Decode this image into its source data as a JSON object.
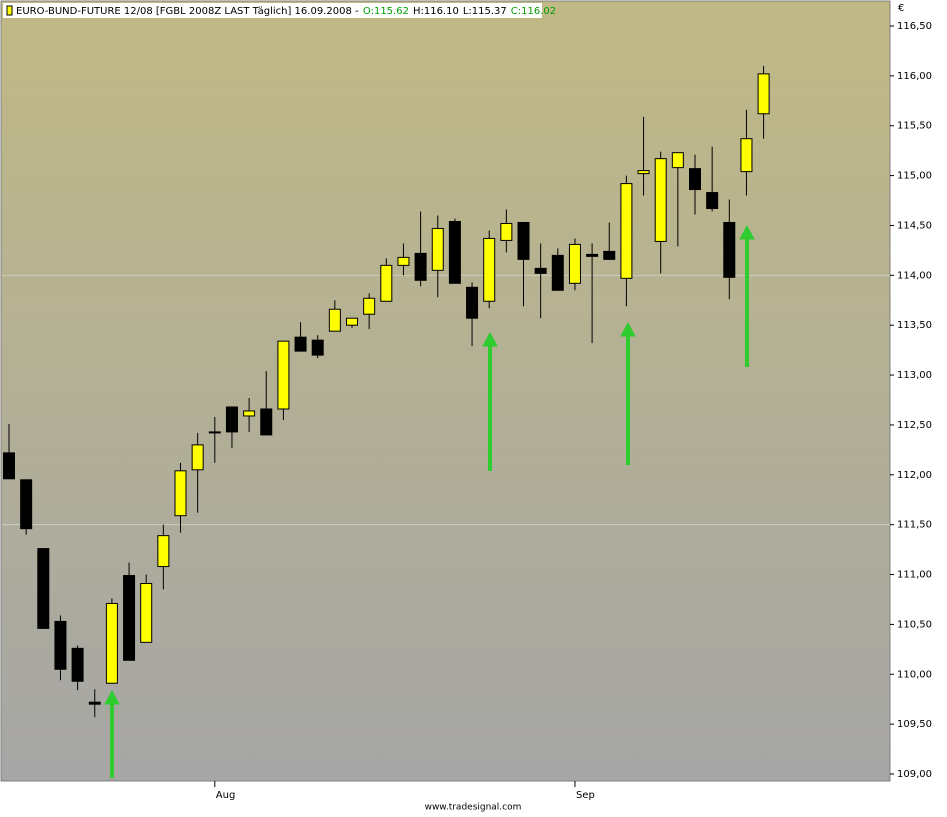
{
  "chart_data": {
    "type": "candlestick",
    "title": "EURO-BUND-FUTURE 12/08 [FGBL 2008Z LAST Täglich] 16.09.2008 -",
    "header_values": [
      {
        "text": "O:115.62",
        "color": "#00a000"
      },
      {
        "text": "H:116.10",
        "color": "#000000"
      },
      {
        "text": "L:115.37",
        "color": "#000000"
      },
      {
        "text": "C:116.02",
        "color": "#00a000"
      }
    ],
    "y_unit": "€",
    "footer": "www.tradesignal.com",
    "up_color": "#ffff00",
    "down_color": "#000000",
    "grid": true,
    "categories": [
      null,
      null,
      null,
      null,
      null,
      null,
      null,
      null,
      null,
      null,
      null,
      null,
      "Aug",
      null,
      null,
      null,
      null,
      null,
      null,
      null,
      null,
      null,
      null,
      null,
      null,
      null,
      null,
      null,
      null,
      null,
      null,
      null,
      null,
      "Sep",
      null,
      null,
      null,
      null,
      null,
      null,
      null,
      null,
      null,
      null,
      null
    ],
    "open": [
      112.22,
      111.95,
      111.26,
      110.53,
      110.26,
      109.72,
      109.91,
      110.99,
      110.32,
      111.08,
      111.59,
      112.05,
      112.43,
      112.68,
      112.59,
      112.66,
      112.66,
      113.38,
      113.35,
      113.44,
      113.5,
      113.61,
      113.74,
      114.1,
      114.22,
      114.05,
      114.54,
      113.88,
      113.74,
      114.35,
      114.53,
      114.07,
      114.2,
      113.92,
      114.21,
      114.24,
      113.97,
      115.02,
      114.34,
      115.08,
      115.07,
      114.83,
      114.53,
      115.04,
      115.62
    ],
    "high": [
      112.51,
      111.95,
      111.26,
      110.59,
      110.29,
      109.85,
      110.76,
      111.12,
      111.0,
      111.5,
      112.12,
      112.42,
      112.58,
      112.68,
      112.77,
      113.04,
      113.34,
      113.53,
      113.4,
      113.75,
      113.57,
      113.82,
      114.17,
      114.32,
      114.64,
      114.6,
      114.57,
      113.93,
      114.45,
      114.66,
      114.53,
      114.32,
      114.27,
      114.37,
      114.32,
      114.53,
      115.0,
      115.59,
      115.24,
      115.23,
      115.21,
      115.29,
      114.76,
      115.66,
      116.1
    ],
    "low": [
      111.96,
      111.4,
      110.46,
      109.94,
      109.84,
      109.57,
      109.91,
      110.14,
      110.32,
      110.85,
      111.42,
      111.62,
      112.12,
      112.27,
      112.43,
      112.4,
      112.55,
      113.24,
      113.17,
      113.44,
      113.47,
      113.46,
      113.74,
      114.0,
      113.89,
      113.78,
      113.92,
      113.29,
      113.67,
      114.23,
      113.69,
      113.57,
      113.85,
      113.85,
      113.32,
      114.16,
      113.69,
      114.8,
      114.02,
      114.29,
      114.61,
      114.64,
      113.76,
      114.8,
      115.37
    ],
    "close": [
      111.96,
      111.46,
      110.46,
      110.05,
      109.93,
      109.7,
      110.71,
      110.14,
      110.91,
      111.39,
      112.04,
      112.3,
      112.42,
      112.43,
      112.64,
      112.4,
      113.34,
      113.24,
      113.2,
      113.66,
      113.57,
      113.77,
      114.1,
      114.18,
      113.95,
      114.47,
      113.92,
      113.57,
      114.37,
      114.52,
      114.16,
      114.02,
      113.85,
      114.31,
      114.19,
      114.16,
      114.92,
      115.05,
      115.17,
      115.23,
      114.86,
      114.67,
      113.98,
      115.37,
      116.02
    ],
    "ylim": [
      109,
      116.5
    ],
    "yticks": [
      {
        "value": 109,
        "label": "109,00"
      },
      {
        "value": 109.5,
        "label": "109,50"
      },
      {
        "value": 110,
        "label": "110,00"
      },
      {
        "value": 110.5,
        "label": "110,50"
      },
      {
        "value": 111,
        "label": "111,00"
      },
      {
        "value": 111.5,
        "label": "111,50"
      },
      {
        "value": 112,
        "label": "112,00"
      },
      {
        "value": 112.5,
        "label": "112,50"
      },
      {
        "value": 113,
        "label": "113,00"
      },
      {
        "value": 113.5,
        "label": "113,50"
      },
      {
        "value": 114,
        "label": "114,00"
      },
      {
        "value": 114.5,
        "label": "114,50"
      },
      {
        "value": 115,
        "label": "115,00"
      },
      {
        "value": 115.5,
        "label": "115,50"
      },
      {
        "value": 116,
        "label": "116,00"
      },
      {
        "value": 116.5,
        "label": "116,50"
      }
    ]
  }
}
